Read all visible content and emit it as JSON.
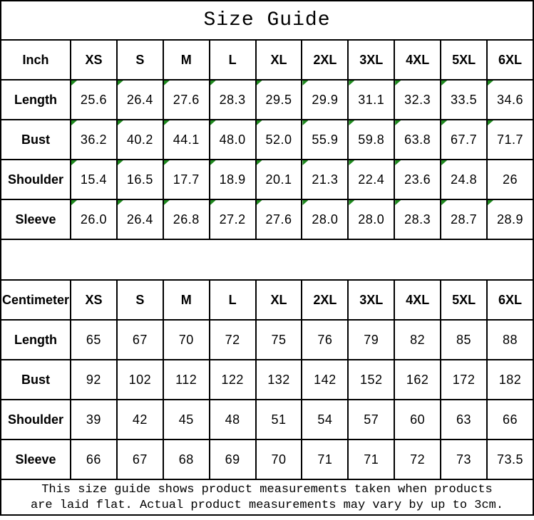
{
  "title": "Size Guide",
  "colors": {
    "border": "#000000",
    "text": "#000000",
    "background": "#ffffff",
    "flag_green": "#1f8b1f"
  },
  "tables": [
    {
      "unit_label": "Inch",
      "size_headers": [
        "XS",
        "S",
        "M",
        "L",
        "XL",
        "2XL",
        "3XL",
        "4XL",
        "5XL",
        "6XL"
      ],
      "rows": [
        {
          "label": "Length",
          "values": [
            "25.6",
            "26.4",
            "27.6",
            "28.3",
            "29.5",
            "29.9",
            "31.1",
            "32.3",
            "33.5",
            "34.6"
          ],
          "flags": [
            1,
            1,
            1,
            1,
            1,
            1,
            1,
            1,
            1,
            1
          ]
        },
        {
          "label": "Bust",
          "values": [
            "36.2",
            "40.2",
            "44.1",
            "48.0",
            "52.0",
            "55.9",
            "59.8",
            "63.8",
            "67.7",
            "71.7"
          ],
          "flags": [
            1,
            1,
            1,
            1,
            1,
            1,
            1,
            1,
            1,
            1
          ]
        },
        {
          "label": "Shoulder",
          "values": [
            "15.4",
            "16.5",
            "17.7",
            "18.9",
            "20.1",
            "21.3",
            "22.4",
            "23.6",
            "24.8",
            "26"
          ],
          "flags": [
            1,
            1,
            1,
            1,
            1,
            1,
            1,
            1,
            1,
            0
          ]
        },
        {
          "label": "Sleeve",
          "values": [
            "26.0",
            "26.4",
            "26.8",
            "27.2",
            "27.6",
            "28.0",
            "28.0",
            "28.3",
            "28.7",
            "28.9"
          ],
          "flags": [
            1,
            1,
            1,
            1,
            1,
            1,
            1,
            1,
            1,
            1
          ]
        }
      ]
    },
    {
      "unit_label": "Centimeter",
      "size_headers": [
        "XS",
        "S",
        "M",
        "L",
        "XL",
        "2XL",
        "3XL",
        "4XL",
        "5XL",
        "6XL"
      ],
      "rows": [
        {
          "label": "Length",
          "values": [
            "65",
            "67",
            "70",
            "72",
            "75",
            "76",
            "79",
            "82",
            "85",
            "88"
          ],
          "flags": [
            0,
            0,
            0,
            0,
            0,
            0,
            0,
            0,
            0,
            0
          ]
        },
        {
          "label": "Bust",
          "values": [
            "92",
            "102",
            "112",
            "122",
            "132",
            "142",
            "152",
            "162",
            "172",
            "182"
          ],
          "flags": [
            0,
            0,
            0,
            0,
            0,
            0,
            0,
            0,
            0,
            0
          ]
        },
        {
          "label": "Shoulder",
          "values": [
            "39",
            "42",
            "45",
            "48",
            "51",
            "54",
            "57",
            "60",
            "63",
            "66"
          ],
          "flags": [
            0,
            0,
            0,
            0,
            0,
            0,
            0,
            0,
            0,
            0
          ]
        },
        {
          "label": "Sleeve",
          "values": [
            "66",
            "67",
            "68",
            "69",
            "70",
            "71",
            "71",
            "72",
            "73",
            "73.5"
          ],
          "flags": [
            0,
            0,
            0,
            0,
            0,
            0,
            0,
            0,
            0,
            0
          ]
        }
      ]
    }
  ],
  "footer": {
    "line1": "This size guide shows product measurements taken when products",
    "line2": "are laid flat. Actual product measurements may vary by up to 3cm."
  }
}
